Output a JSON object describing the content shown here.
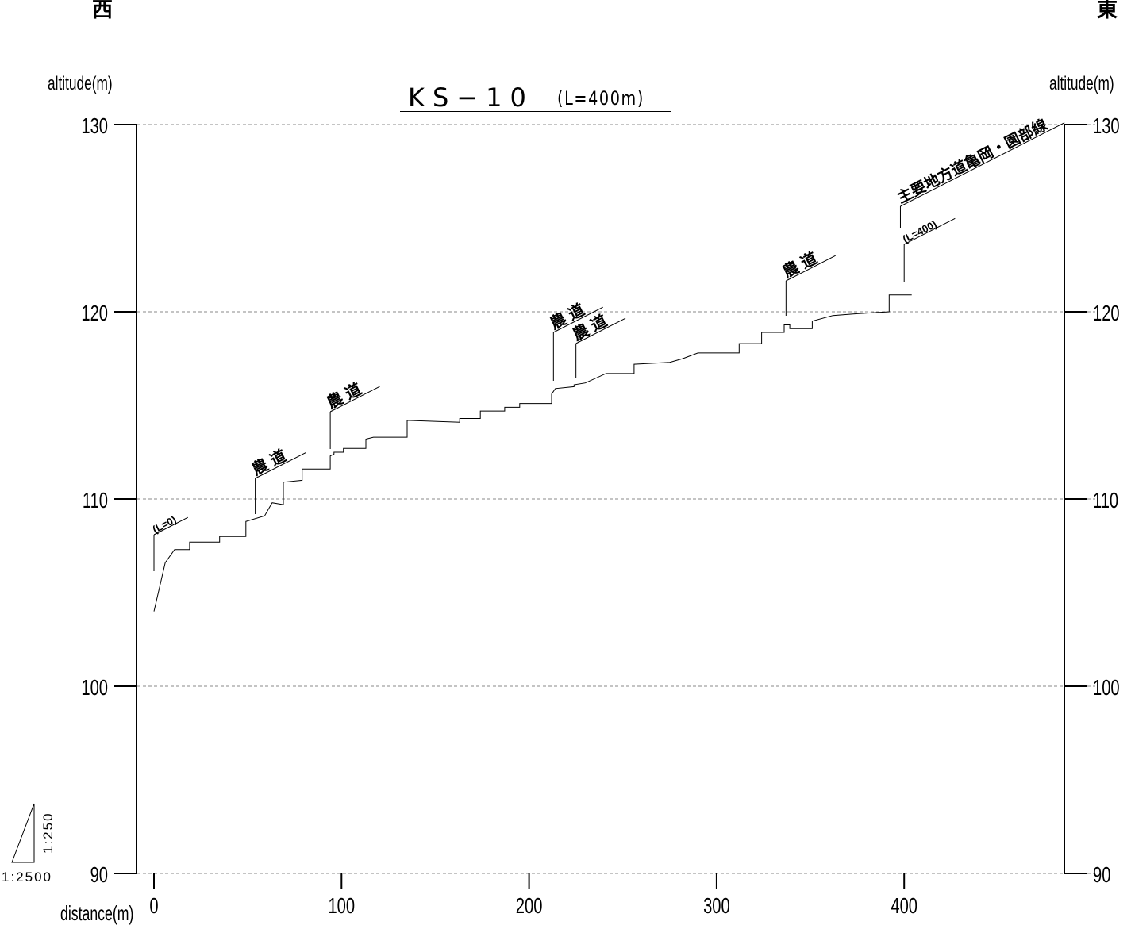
{
  "direction_west": "西",
  "direction_east": "東",
  "ylabel_left": "altitude(m)",
  "ylabel_right": "altitude(m)",
  "title_main": "KS−10",
  "title_sub": "(L=400m)",
  "xlabel": "distance(m)",
  "scale_horizontal": "1:2500",
  "scale_vertical": "1:250",
  "chart_data": {
    "type": "line",
    "ylim": [
      90,
      130
    ],
    "xlim": [
      0,
      480
    ],
    "yticks": [
      90,
      100,
      110,
      120,
      130
    ],
    "xticks": [
      0,
      100,
      200,
      300,
      400
    ],
    "grid": "horizontal-dashed",
    "series": [
      {
        "x": [
          0,
          6,
          11,
          11,
          19,
          19,
          35,
          35,
          49,
          49,
          59,
          63,
          63,
          69,
          69,
          79,
          79,
          94,
          94,
          96,
          96,
          101,
          101,
          113,
          113,
          117,
          117,
          135,
          135,
          163,
          163,
          174,
          174,
          187,
          187,
          195,
          195,
          212,
          212,
          214,
          214,
          224,
          224,
          230,
          230,
          241,
          241,
          256,
          256,
          275,
          275,
          282,
          282,
          290,
          290,
          312,
          312,
          324,
          324,
          336,
          336,
          339,
          339,
          351,
          351,
          362,
          375,
          392,
          392,
          404
        ],
        "y": [
          104,
          106.6,
          107.3,
          107.3,
          107.3,
          107.7,
          107.7,
          108,
          108,
          108.8,
          109.1,
          109.8,
          109.8,
          109.7,
          110.9,
          111,
          111.6,
          111.6,
          112.3,
          112.4,
          112.5,
          112.5,
          112.7,
          112.7,
          113.2,
          113.3,
          113.3,
          113.3,
          114.2,
          114.1,
          114.3,
          114.3,
          114.7,
          114.7,
          114.9,
          114.9,
          115.1,
          115.1,
          115.6,
          115.9,
          115.9,
          116,
          116.1,
          116.2,
          116.2,
          116.7,
          116.7,
          116.7,
          117.2,
          117.3,
          117.3,
          117.5,
          117.5,
          117.8,
          117.8,
          117.8,
          118.3,
          118.3,
          118.9,
          118.9,
          119.3,
          119.3,
          119.1,
          119.1,
          119.5,
          119.8,
          119.9,
          120,
          120.9,
          120.9
        ]
      }
    ],
    "annotations": [
      {
        "label": "(L=0)",
        "x": 0
      },
      {
        "label": "農 道",
        "x": 54
      },
      {
        "label": "農 道",
        "x": 94
      },
      {
        "label": "農 道",
        "x": 213
      },
      {
        "label": "農 道",
        "x": 225
      },
      {
        "label": "農 道",
        "x": 337
      },
      {
        "label": "主要地方道亀岡・園部線",
        "x": 398
      },
      {
        "label": "(L=400)",
        "x": 400
      }
    ]
  }
}
